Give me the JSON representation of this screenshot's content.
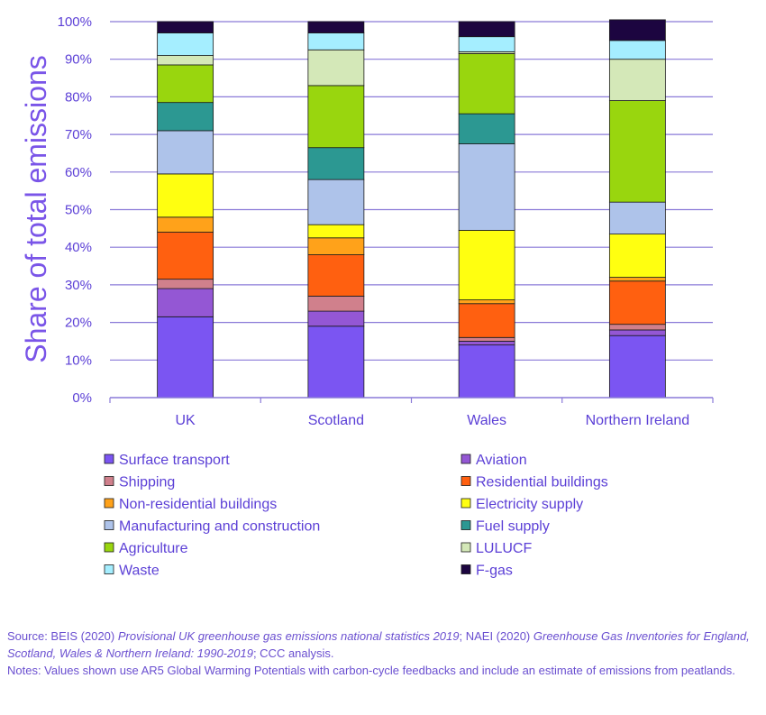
{
  "chart_data": {
    "type": "bar",
    "stacked": true,
    "ylabel": "Share of total emissions",
    "ylim": [
      0,
      100
    ],
    "yticks": [
      "0%",
      "10%",
      "20%",
      "30%",
      "40%",
      "50%",
      "60%",
      "70%",
      "80%",
      "90%",
      "100%"
    ],
    "grid": true,
    "categories": [
      "UK",
      "Scotland",
      "Wales",
      "Northern Ireland"
    ],
    "series": [
      {
        "name": "Surface transport",
        "color": "#7b55f2",
        "values": [
          21.5,
          19,
          14,
          16.5
        ]
      },
      {
        "name": "Aviation",
        "color": "#9457d4",
        "values": [
          7.5,
          4,
          1,
          1.5
        ]
      },
      {
        "name": "Shipping",
        "color": "#d0808c",
        "values": [
          2.5,
          4,
          1,
          1.5
        ]
      },
      {
        "name": "Residential buildings",
        "color": "#ff6010",
        "values": [
          12.5,
          11,
          9,
          11.5
        ]
      },
      {
        "name": "Non-residential buildings",
        "color": "#ffa21a",
        "values": [
          4,
          4.5,
          1,
          1
        ]
      },
      {
        "name": "Electricity supply",
        "color": "#ffff10",
        "values": [
          11.5,
          3.5,
          18.5,
          11.5
        ]
      },
      {
        "name": "Manufacturing and construction",
        "color": "#aec3ea",
        "values": [
          11.5,
          12,
          23,
          8.5
        ]
      },
      {
        "name": "Fuel supply",
        "color": "#2c9892",
        "values": [
          7.5,
          8.5,
          8,
          0
        ]
      },
      {
        "name": "Agriculture",
        "color": "#99d60e",
        "values": [
          10,
          16.5,
          16,
          27
        ]
      },
      {
        "name": "LULUCF",
        "color": "#d4e8b8",
        "values": [
          2.5,
          9.5,
          0.5,
          11
        ]
      },
      {
        "name": "Waste",
        "color": "#a5eeff",
        "values": [
          6,
          4.5,
          4,
          5
        ]
      },
      {
        "name": "F-gas",
        "color": "#1c0540",
        "values": [
          3,
          3,
          4,
          5.5
        ]
      }
    ]
  },
  "notes": {
    "source_prefix": "Source: BEIS (2020) ",
    "source_title1": "Provisional UK greenhouse gas emissions national statistics 2019",
    "source_mid": ";  NAEI (2020) ",
    "source_title2": "Greenhouse Gas Inventories for England, Scotland, Wales & Northern Ireland: 1990-2019",
    "source_suffix": "; CCC analysis.",
    "notes_text": "Notes: Values shown use AR5 Global Warming Potentials with carbon-cycle feedbacks and include an estimate of emissions from peatlands."
  }
}
